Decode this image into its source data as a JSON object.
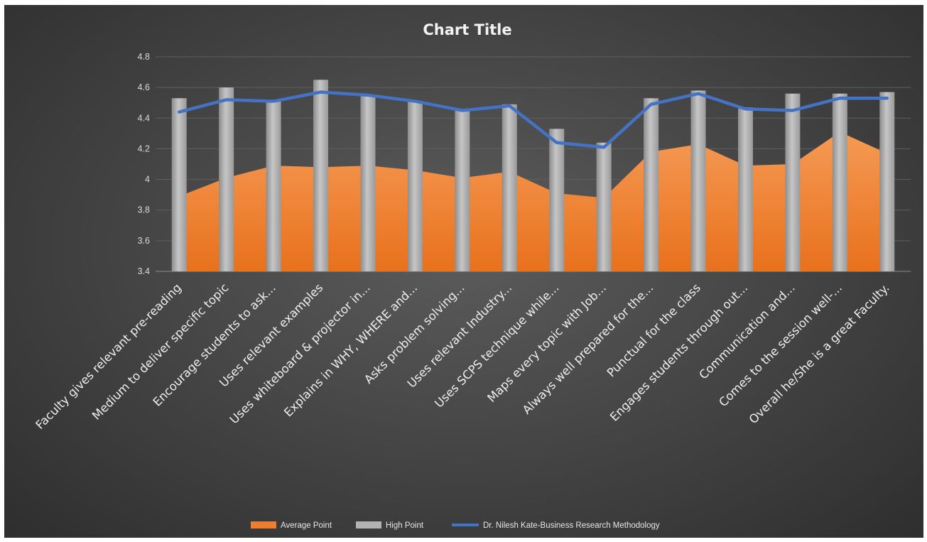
{
  "chart_data": {
    "type": "bar",
    "title": "Chart Title",
    "xlabel": "",
    "ylabel": "",
    "ylim": [
      3.4,
      4.8
    ],
    "yticks": [
      "3.4",
      "3.6",
      "3.8",
      "4",
      "4.2",
      "4.4",
      "4.6",
      "4.8"
    ],
    "grid": true,
    "legend_position": "bottom",
    "categories": [
      "Faculty gives relevant pre-reading",
      "Medium to deliver specific topic",
      "Encourage students to ask...",
      "Uses relevant examples",
      "Uses whiteboard & projector in...",
      "Explains in WHY, WHERE and...",
      "Asks problem solving...",
      "Uses relevant Industry...",
      "Uses SCPS technique while...",
      "Maps every topic with Job...",
      "Always well prepared for the...",
      "Punctual for the class",
      "Engages students through out...",
      "Communication and...",
      "Comes to the session well-...",
      "Overall he/She is a great Faculty."
    ],
    "series": [
      {
        "name": "Average Point",
        "type": "area",
        "color": "#ed7d31",
        "values": [
          3.89,
          4.01,
          4.09,
          4.08,
          4.09,
          4.06,
          4.01,
          4.05,
          3.91,
          3.88,
          4.18,
          4.23,
          4.09,
          4.1,
          4.31,
          4.17
        ]
      },
      {
        "name": "High Point",
        "type": "bar",
        "color": "#a5a5a5",
        "values": [
          4.53,
          4.6,
          4.51,
          4.65,
          4.55,
          4.51,
          4.46,
          4.49,
          4.33,
          4.24,
          4.53,
          4.58,
          4.47,
          4.56,
          4.56,
          4.57
        ]
      },
      {
        "name": "Dr. Nilesh Kate-Business Research Methodology",
        "type": "line",
        "color": "#4472c4",
        "values": [
          4.44,
          4.52,
          4.51,
          4.57,
          4.55,
          4.51,
          4.45,
          4.48,
          4.24,
          4.21,
          4.49,
          4.56,
          4.46,
          4.45,
          4.53,
          4.53
        ]
      }
    ]
  }
}
